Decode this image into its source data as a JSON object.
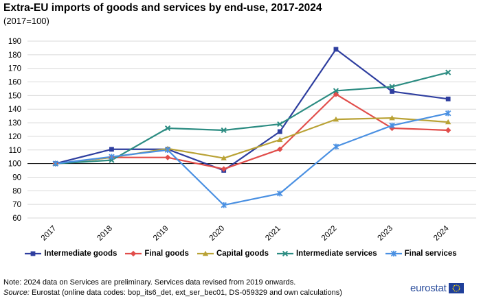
{
  "title": "Extra-EU imports of goods and services by end-use, 2017-2024",
  "subtitle": "(2017=100)",
  "note": "Note: 2024 data on Services are preliminary. Services data revised from 2019 onwards.",
  "source_label": "Source:",
  "source_text": "Eurostat (online data codes: bop_its6_det, ext_ser_bec01, DS-059329 and own calculations)",
  "logo_text": "eurostat",
  "chart_data": {
    "type": "line",
    "title": "Extra-EU imports of goods and services by end-use, 2017-2024",
    "subtitle": "(2017=100)",
    "xlabel": "",
    "ylabel": "",
    "categories": [
      "2017",
      "2018",
      "2019",
      "2020",
      "2021",
      "2022",
      "2023",
      "2024"
    ],
    "ylim": [
      60,
      190
    ],
    "yticks": [
      60,
      70,
      80,
      90,
      100,
      110,
      120,
      130,
      140,
      150,
      160,
      170,
      180,
      190
    ],
    "baseline": 100,
    "grid": true,
    "legend_position": "bottom",
    "series": [
      {
        "name": "Intermediate goods",
        "color": "#2e3e9f",
        "marker": "square",
        "values": [
          100,
          110.5,
          110.5,
          95,
          123.5,
          184,
          153,
          147.5
        ]
      },
      {
        "name": "Final goods",
        "color": "#e14d4a",
        "marker": "diamond",
        "values": [
          100,
          104.5,
          104.5,
          96,
          110.5,
          151,
          126,
          124.5
        ]
      },
      {
        "name": "Capital goods",
        "color": "#b9a235",
        "marker": "triangle",
        "values": [
          100,
          104.5,
          111,
          104,
          117.5,
          132.5,
          133.5,
          130.5
        ]
      },
      {
        "name": "Intermediate services",
        "color": "#2c8c82",
        "marker": "x",
        "values": [
          100,
          102.5,
          126,
          124.5,
          129,
          153.5,
          156.5,
          167
        ]
      },
      {
        "name": "Final services",
        "color": "#4a90e2",
        "marker": "star",
        "values": [
          100,
          105,
          110,
          69.5,
          78,
          112.5,
          128,
          137
        ]
      }
    ]
  }
}
